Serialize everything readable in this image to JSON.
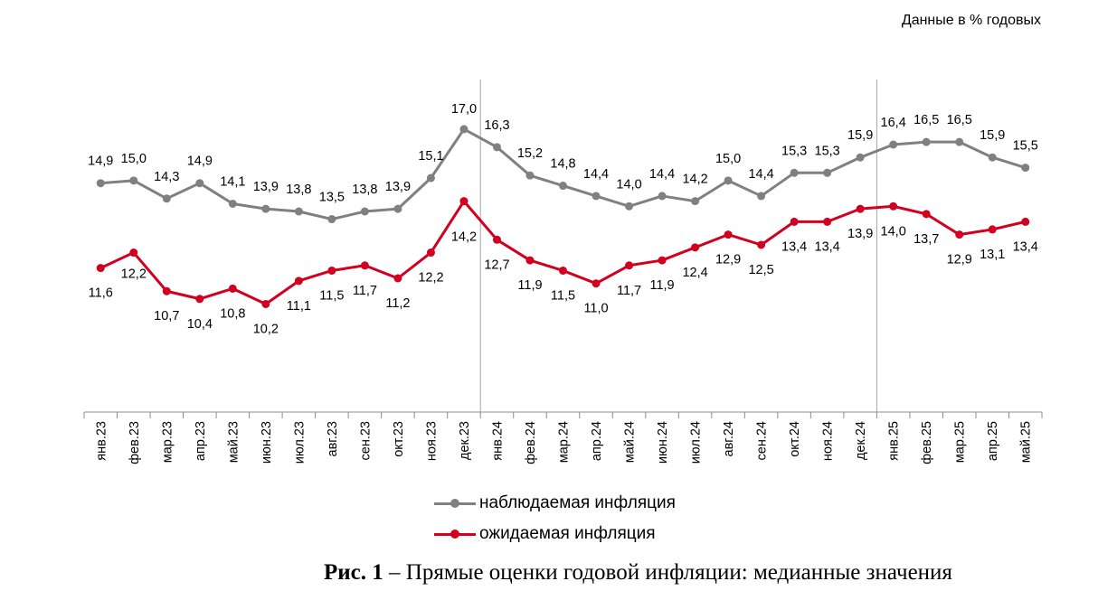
{
  "units_note": "Данные в % годовых",
  "caption": {
    "label": "Рис. 1",
    "text": " – Прямые оценки годовой инфляции: медианные значения"
  },
  "chart_data": {
    "type": "line",
    "title": "",
    "xlabel": "",
    "ylabel": "",
    "ylim": [
      6,
      19
    ],
    "categories": [
      "янв.23",
      "фев.23",
      "мар.23",
      "апр.23",
      "май.23",
      "июн.23",
      "июл.23",
      "авг.23",
      "сен.23",
      "окт.23",
      "ноя.23",
      "дек.23",
      "янв.24",
      "фев.24",
      "мар.24",
      "апр.24",
      "май.24",
      "июн.24",
      "июл.24",
      "авг.24",
      "сен.24",
      "окт.24",
      "ноя.24",
      "дек.24",
      "янв.25",
      "фев.25",
      "мар.25",
      "апр.25",
      "май.25"
    ],
    "series": [
      {
        "name": "наблюдаемая инфляция",
        "color": "#808080",
        "values": [
          14.9,
          15.0,
          14.3,
          14.9,
          14.1,
          13.9,
          13.8,
          13.5,
          13.8,
          13.9,
          15.1,
          17.0,
          16.3,
          15.2,
          14.8,
          14.4,
          14.0,
          14.4,
          14.2,
          15.0,
          14.4,
          15.3,
          15.3,
          15.9,
          16.4,
          16.5,
          16.5,
          15.9,
          15.5
        ],
        "label_strings": [
          "14,9",
          "15,0",
          "14,3",
          "14,9",
          "14,1",
          "13,9",
          "13,8",
          "13,5",
          "13,8",
          "13,9",
          "15,1",
          "17,0",
          "16,3",
          "15,2",
          "14,8",
          "14,4",
          "14,0",
          "14,4",
          "14,2",
          "15,0",
          "14,4",
          "15,3",
          "15,3",
          "15,9",
          "16,4",
          "16,5",
          "16,5",
          "15,9",
          "15,5"
        ]
      },
      {
        "name": "ожидаемая инфляция",
        "color": "#d2001e",
        "values": [
          11.6,
          12.2,
          10.7,
          10.4,
          10.8,
          10.2,
          11.1,
          11.5,
          11.7,
          11.2,
          12.2,
          14.2,
          12.7,
          11.9,
          11.5,
          11.0,
          11.7,
          11.9,
          12.4,
          12.9,
          12.5,
          13.4,
          13.4,
          13.9,
          14.0,
          13.7,
          12.9,
          13.1,
          13.4
        ],
        "label_strings": [
          "11,6",
          "12,2",
          "10,7",
          "10,4",
          "10,8",
          "10,2",
          "11,1",
          "11,5",
          "11,7",
          "11,2",
          "12,2",
          "14,2",
          "12,7",
          "11,9",
          "11,5",
          "11,0",
          "11,7",
          "11,9",
          "12,4",
          "12,9",
          "12,5",
          "13,4",
          "13,4",
          "13,9",
          "14,0",
          "13,7",
          "12,9",
          "13,1",
          "13,4"
        ]
      }
    ],
    "year_separators_after": [
      "дек.23",
      "дек.24"
    ],
    "grid": false,
    "legend_position": "bottom"
  }
}
